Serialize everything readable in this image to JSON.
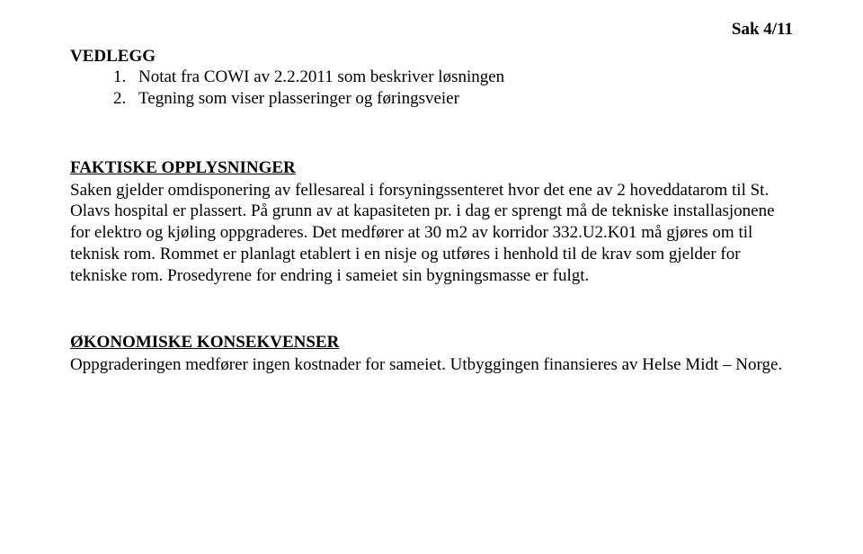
{
  "corner": "Sak 4/11",
  "vedlegg": {
    "title": "VEDLEGG",
    "items": [
      {
        "num": "1.",
        "text": "Notat fra COWI av 2.2.2011 som beskriver løsningen"
      },
      {
        "num": "2.",
        "text": "Tegning som viser plasseringer og føringsveier"
      }
    ]
  },
  "faktiske": {
    "heading": "FAKTISKE OPPLYSNINGER",
    "body": "Saken gjelder omdisponering av fellesareal i forsyningssenteret hvor det ene av 2 hoveddatarom til St. Olavs hospital er plassert. På grunn av at kapasiteten pr. i dag er sprengt må de tekniske installasjonene for elektro og kjøling oppgraderes. Det medfører at 30 m2 av korridor 332.U2.K01 må gjøres om til teknisk rom. Rommet er planlagt etablert i en nisje og utføres i henhold til de krav som gjelder for tekniske rom. Prosedyrene for endring i sameiet sin bygningsmasse er fulgt."
  },
  "okonomiske": {
    "heading": "ØKONOMISKE KONSEKVENSER",
    "body": "Oppgraderingen medfører ingen kostnader for sameiet. Utbyggingen finansieres av Helse Midt – Norge."
  }
}
